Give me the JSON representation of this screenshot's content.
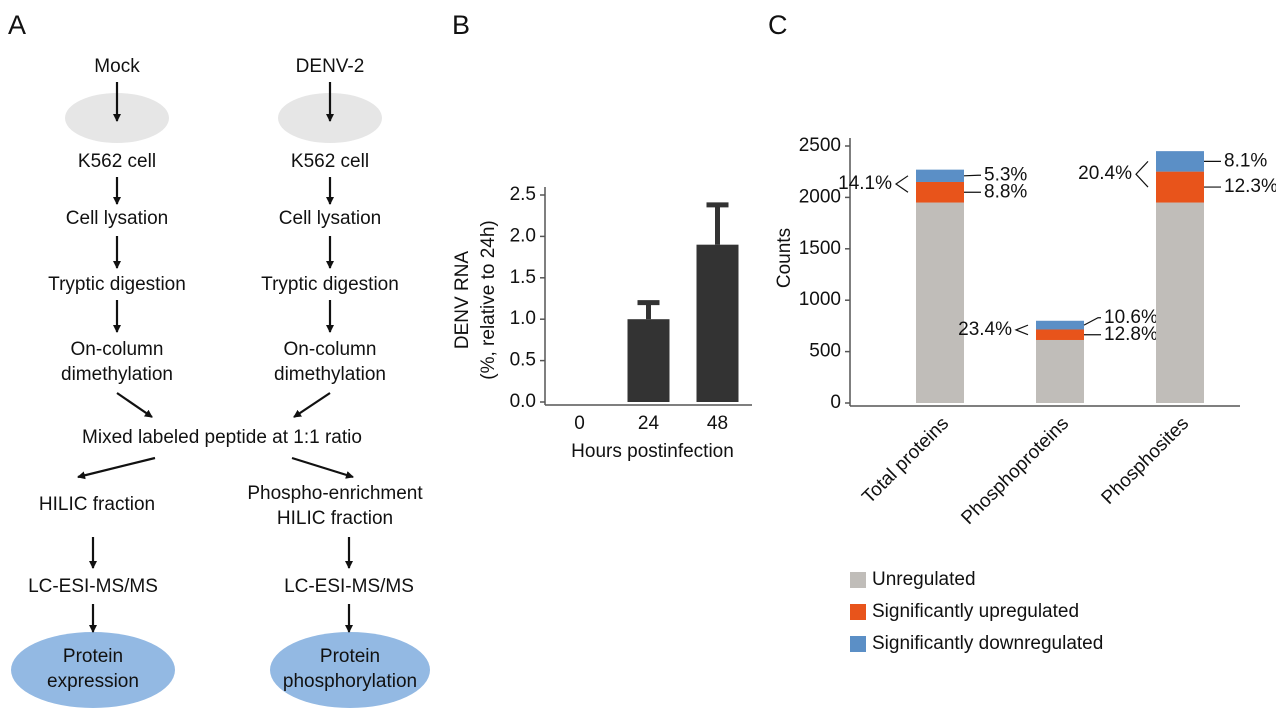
{
  "diagram": {
    "label": "A",
    "nodes": [
      {
        "lines": [
          "Mock"
        ]
      },
      {
        "lines": [
          "K562 cell"
        ]
      },
      {
        "lines": [
          "Cell lysation"
        ]
      },
      {
        "lines": [
          "Tryptic digestion"
        ]
      },
      {
        "lines": [
          "On-column",
          "dimethylation"
        ]
      },
      {
        "lines": [
          "DENV-2"
        ]
      },
      {
        "lines": [
          "K562 cell"
        ]
      },
      {
        "lines": [
          "Cell lysation"
        ]
      },
      {
        "lines": [
          "Tryptic digestion"
        ]
      },
      {
        "lines": [
          "On-column",
          "dimethylation"
        ]
      },
      {
        "lines": [
          "Mixed labeled peptide at 1:1 ratio"
        ]
      },
      {
        "lines": [
          "HILIC fraction"
        ]
      },
      {
        "lines": [
          "Phospho-enrichment",
          "HILIC fraction"
        ]
      },
      {
        "lines": [
          "LC-ESI-MS/MS"
        ]
      },
      {
        "lines": [
          "LC-ESI-MS/MS"
        ]
      },
      {
        "lines": [
          "Protein",
          "expression"
        ]
      },
      {
        "lines": [
          "Protein",
          "phosphorylation"
        ]
      }
    ]
  },
  "chart_data": [
    {
      "panel_label": "B",
      "type": "bar",
      "categories": [
        "0",
        "24",
        "48"
      ],
      "values": [
        0,
        1,
        1.9
      ],
      "errors": [
        0,
        0.2,
        0.48
      ],
      "color": "#333333",
      "ylim": [
        0,
        2.5
      ],
      "yticks": [
        {
          "value": 0,
          "label": "0.0"
        },
        0.5,
        {
          "value": 1,
          "label": "1.0"
        },
        1.5,
        {
          "value": 2,
          "label": "2.0"
        },
        2.5
      ],
      "ylabel": [
        "DENV RNA",
        "(%, relative to 24h)"
      ],
      "xlabel": "Hours postinfection"
    },
    {
      "panel_label": "C",
      "type": "stacked_bar",
      "categories": [
        "Total proteins",
        "Phosphoproteins",
        "Phosphosites"
      ],
      "series": [
        {
          "name": "Unregulated",
          "color": "#c0bdb9",
          "values": [
            1950,
            613,
            1950
          ]
        },
        {
          "name": "Significantly upregulated",
          "color": "#e8541b",
          "values": [
            200,
            102,
            301
          ]
        },
        {
          "name": "Significantly downregulated",
          "color": "#5b8fc6",
          "values": [
            120,
            85,
            199
          ]
        }
      ],
      "percent_labels": {
        "combined": [
          "14.1%",
          "23.4%",
          "20.4%"
        ],
        "up": [
          "8.8%",
          "12.8%",
          "12.3%"
        ],
        "down": [
          "5.3%",
          "10.6%",
          "8.1%"
        ]
      },
      "ylim": [
        0,
        2500
      ],
      "yticks": [
        0,
        500,
        1000,
        1500,
        2000,
        2500
      ],
      "ylabel": "Counts"
    }
  ]
}
